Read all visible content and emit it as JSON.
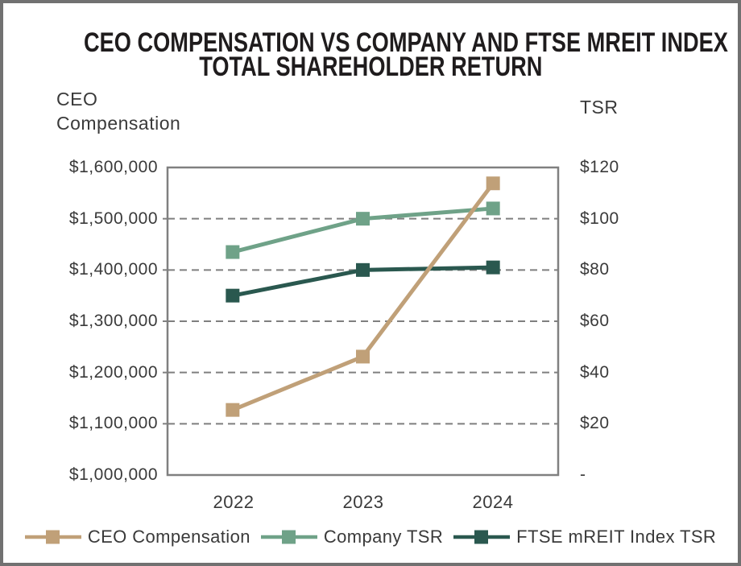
{
  "title": {
    "line1": "CEO COMPENSATION VS COMPANY AND FTSE MREIT INDEX",
    "line2": "TOTAL SHAREHOLDER RETURN"
  },
  "axes": {
    "left": {
      "title_line1": "CEO",
      "title_line2": "Compensation",
      "tick_labels": [
        "$1,600,000",
        "$1,500,000",
        "$1,400,000",
        "$1,300,000",
        "$1,200,000",
        "$1,100,000",
        "$1,000,000"
      ]
    },
    "right": {
      "title": "TSR",
      "tick_labels": [
        "$120",
        "$100",
        "$80",
        "$60",
        "$40",
        "$20",
        "-"
      ]
    },
    "x": {
      "tick_labels": [
        "2022",
        "2023",
        "2024"
      ]
    }
  },
  "legend": {
    "items": [
      {
        "label": "CEO Compensation",
        "color": "#C0A078"
      },
      {
        "label": "Company TSR",
        "color": "#6FA288"
      },
      {
        "label": "FTSE mREIT Index TSR",
        "color": "#2A584F"
      }
    ]
  },
  "chart_data": {
    "type": "line",
    "title": "CEO COMPENSATION VS COMPANY AND FTSE MREIT INDEX TOTAL SHAREHOLDER RETURN",
    "categories": [
      "2022",
      "2023",
      "2024"
    ],
    "series": [
      {
        "name": "CEO Compensation",
        "axis": "left",
        "color": "#C0A078",
        "values": [
          1127000,
          1231000,
          1569000
        ]
      },
      {
        "name": "Company TSR",
        "axis": "right",
        "color": "#6FA288",
        "values": [
          87,
          100,
          104
        ]
      },
      {
        "name": "FTSE mREIT Index TSR",
        "axis": "right",
        "color": "#2A584F",
        "values": [
          70,
          80,
          81
        ]
      }
    ],
    "left_axis_label": "CEO Compensation",
    "right_axis_label": "TSR",
    "xlabel": "",
    "left_ylim": [
      1000000,
      1600000
    ],
    "left_tick_step": 100000,
    "right_ylim": [
      0,
      120
    ],
    "right_tick_step": 20,
    "grid": "horizontal-dashed",
    "grid_color": "#7F7F7F",
    "border_color": "#808080",
    "marker": "square",
    "legend_position": "bottom"
  }
}
